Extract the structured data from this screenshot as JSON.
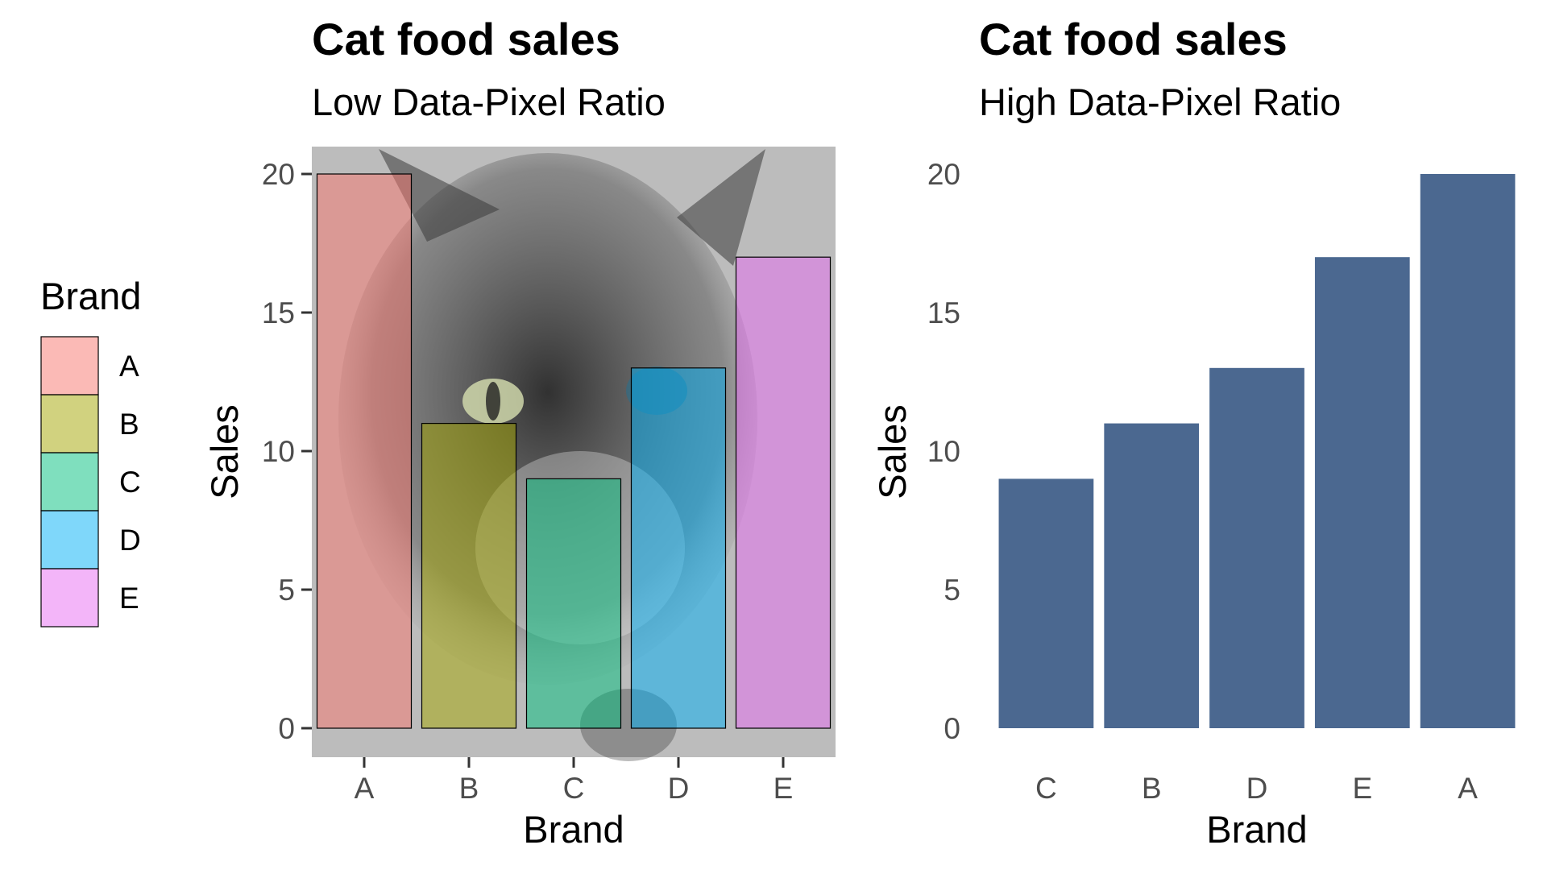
{
  "chart_data": [
    {
      "type": "bar",
      "title": "Cat food sales",
      "subtitle": "Low Data-Pixel Ratio",
      "xlabel": "Brand",
      "ylabel": "Sales",
      "categories": [
        "A",
        "B",
        "C",
        "D",
        "E"
      ],
      "values": [
        20,
        11,
        9,
        13,
        17
      ],
      "colors": [
        "#f8766d",
        "#a3a500",
        "#00bf7d",
        "#00b0f6",
        "#e76bf3"
      ],
      "ylim": [
        0,
        20
      ],
      "yticks": [
        0,
        5,
        10,
        15,
        20
      ],
      "background": "cat photo (grey)",
      "legend": {
        "title": "Brand",
        "placement": "left",
        "items": [
          "A",
          "B",
          "C",
          "D",
          "E"
        ]
      }
    },
    {
      "type": "bar",
      "title": "Cat food sales",
      "subtitle": "High Data-Pixel Ratio",
      "xlabel": "Brand",
      "ylabel": "Sales",
      "categories": [
        "C",
        "B",
        "D",
        "E",
        "A"
      ],
      "values": [
        9,
        11,
        13,
        17,
        20
      ],
      "bar_color": "#4b6890",
      "ylim": [
        0,
        20
      ],
      "yticks": [
        0,
        5,
        10,
        15,
        20
      ]
    }
  ]
}
